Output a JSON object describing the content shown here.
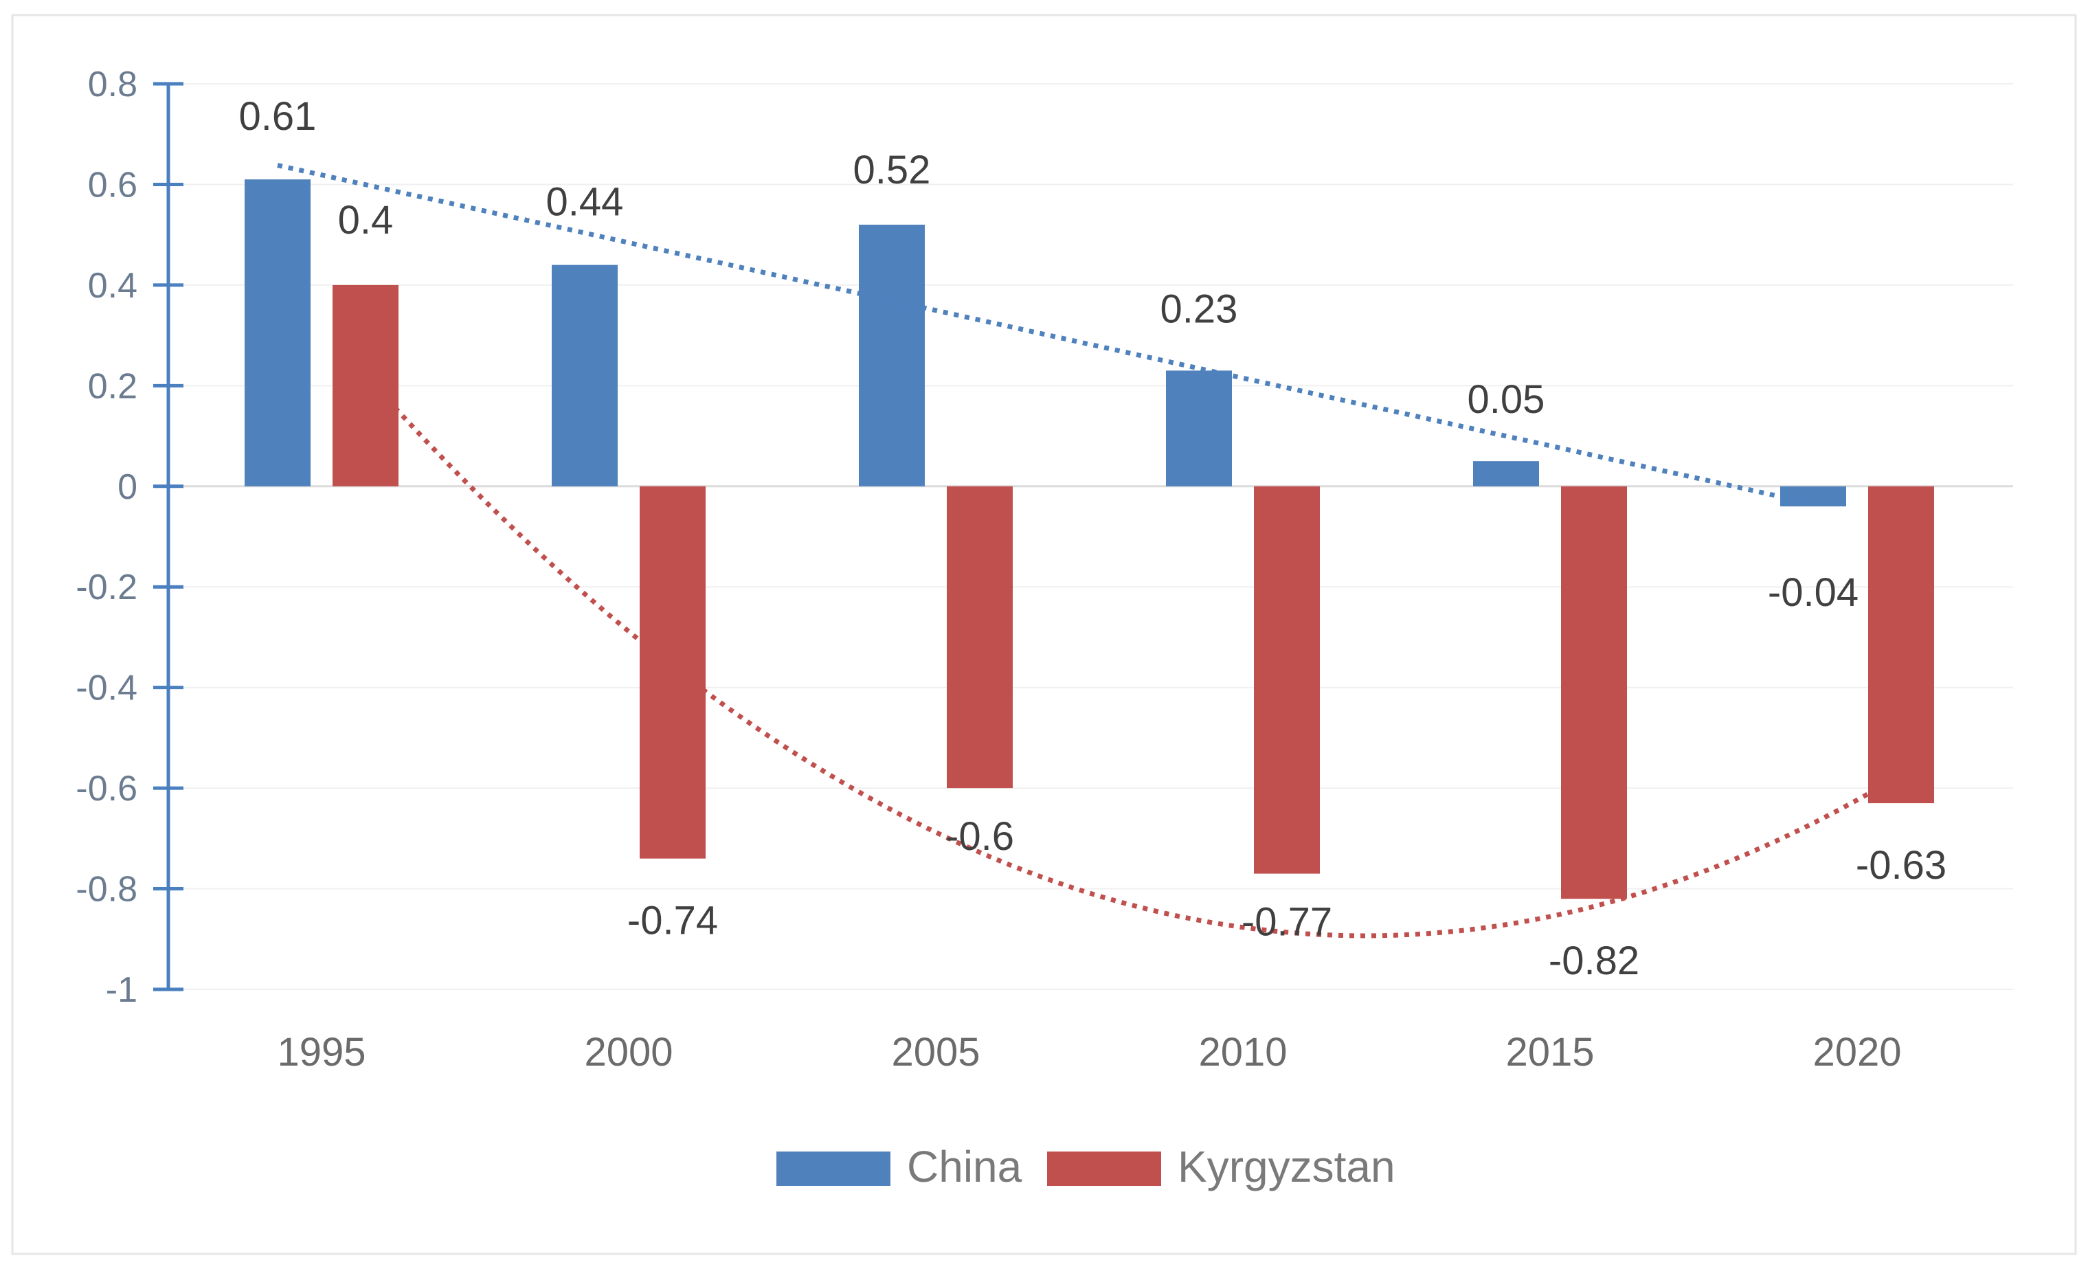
{
  "chart_data": {
    "type": "bar",
    "title": "",
    "xlabel": "",
    "ylabel": "",
    "categories": [
      "1995",
      "2000",
      "2005",
      "2010",
      "2015",
      "2020"
    ],
    "series": [
      {
        "name": "China",
        "color": "#4f81bd",
        "values": [
          0.61,
          0.44,
          0.52,
          0.23,
          0.05,
          -0.04
        ]
      },
      {
        "name": "Kyrgyzstan",
        "color": "#c0504d",
        "values": [
          0.4,
          -0.74,
          -0.6,
          -0.77,
          -0.82,
          -0.63
        ]
      }
    ],
    "data_labels": {
      "China": [
        "0.61",
        "0.44",
        "0.52",
        "0.23",
        "0.05",
        "-0.04"
      ],
      "Kyrgyzstan": [
        "0.4",
        "-0.74",
        "-0.6",
        "-0.77",
        "-0.82",
        "-0.63"
      ]
    },
    "trendlines": [
      {
        "series": "China",
        "kind": "linear",
        "color": "#4f81bd",
        "style": "dotted"
      },
      {
        "series": "Kyrgyzstan",
        "kind": "polynomial",
        "color": "#c0504d",
        "style": "dotted"
      }
    ],
    "ylim": [
      -1,
      0.8
    ],
    "yticks": [
      0.8,
      0.6,
      0.4,
      0.2,
      0,
      -0.2,
      -0.4,
      -0.6,
      -0.8,
      -1
    ],
    "ytick_labels": [
      "0.8",
      "0.6",
      "0.4",
      "0.2",
      "0",
      "-0.2",
      "-0.4",
      "-0.6",
      "-0.8",
      "-1"
    ],
    "grid": true,
    "legend": {
      "position": "bottom",
      "entries": [
        "China",
        "Kyrgyzstan"
      ]
    }
  }
}
